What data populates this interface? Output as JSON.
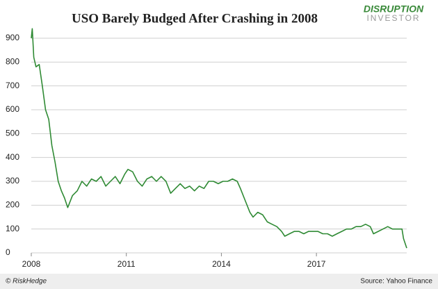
{
  "chart_data": {
    "type": "line",
    "title": "USO Barely Budged After Crashing in 2008",
    "logo": {
      "top": "DISRUPTION",
      "bottom": "INVESTOR"
    },
    "credit": "© RiskHedge",
    "source": "Source: Yahoo Finance",
    "x": [
      2008.0,
      2008.03,
      2008.08,
      2008.15,
      2008.25,
      2008.35,
      2008.45,
      2008.55,
      2008.65,
      2008.75,
      2008.85,
      2008.95,
      2009.05,
      2009.15,
      2009.3,
      2009.45,
      2009.6,
      2009.75,
      2009.9,
      2010.05,
      2010.2,
      2010.35,
      2010.5,
      2010.65,
      2010.8,
      2010.95,
      2011.05,
      2011.2,
      2011.35,
      2011.5,
      2011.65,
      2011.8,
      2011.95,
      2012.1,
      2012.25,
      2012.4,
      2012.55,
      2012.7,
      2012.85,
      2013.0,
      2013.15,
      2013.3,
      2013.45,
      2013.6,
      2013.75,
      2013.9,
      2014.05,
      2014.2,
      2014.35,
      2014.5,
      2014.6,
      2014.75,
      2014.9,
      2015.0,
      2015.15,
      2015.3,
      2015.45,
      2015.6,
      2015.75,
      2015.9,
      2016.0,
      2016.15,
      2016.3,
      2016.45,
      2016.6,
      2016.75,
      2016.9,
      2017.05,
      2017.2,
      2017.35,
      2017.5,
      2017.65,
      2017.8,
      2017.95,
      2018.1,
      2018.25,
      2018.4,
      2018.55,
      2018.7,
      2018.8,
      2018.95,
      2019.1,
      2019.25,
      2019.4,
      2019.55,
      2019.7,
      2019.75,
      2019.8,
      2019.85
    ],
    "values": [
      900,
      940,
      820,
      780,
      790,
      700,
      600,
      560,
      450,
      380,
      300,
      260,
      230,
      190,
      240,
      260,
      300,
      280,
      310,
      300,
      320,
      280,
      300,
      320,
      290,
      330,
      350,
      340,
      300,
      280,
      310,
      320,
      300,
      320,
      300,
      250,
      270,
      290,
      270,
      280,
      260,
      280,
      270,
      300,
      300,
      290,
      300,
      300,
      310,
      300,
      270,
      220,
      170,
      150,
      170,
      160,
      130,
      120,
      110,
      90,
      70,
      80,
      90,
      90,
      80,
      90,
      90,
      90,
      80,
      80,
      70,
      80,
      90,
      100,
      100,
      110,
      110,
      120,
      110,
      80,
      90,
      100,
      110,
      100,
      100,
      100,
      60,
      40,
      20
    ],
    "color": "#2f8a34",
    "xlim": [
      2008,
      2019.85
    ],
    "xticks": [
      2008,
      2011,
      2014,
      2017
    ],
    "ylim": [
      0,
      900
    ],
    "yticks": [
      0,
      100,
      200,
      300,
      400,
      500,
      600,
      700,
      800,
      900
    ],
    "grid": true
  }
}
